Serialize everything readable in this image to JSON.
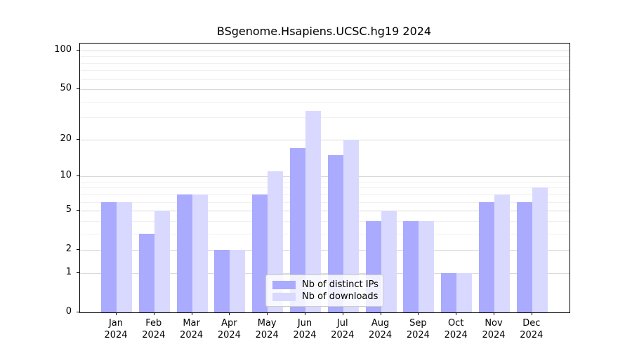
{
  "title": "BSgenome.Hsapiens.UCSC.hg19 2024",
  "chart_data": {
    "type": "bar",
    "title": "BSgenome.Hsapiens.UCSC.hg19 2024",
    "categories": [
      "Jan",
      "Feb",
      "Mar",
      "Apr",
      "May",
      "Jun",
      "Jul",
      "Aug",
      "Sep",
      "Oct",
      "Nov",
      "Dec"
    ],
    "x_year_line": "2024",
    "series": [
      {
        "name": "Nb of distinct IPs",
        "color": "#aaaaff",
        "values": [
          6,
          3,
          7,
          2,
          7,
          17,
          15,
          4,
          4,
          1,
          6,
          6
        ]
      },
      {
        "name": "Nb of downloads",
        "color": "#d9d9ff",
        "values": [
          6,
          5,
          7,
          2,
          11,
          34,
          20,
          5,
          4,
          1,
          7,
          8
        ]
      }
    ],
    "y_axis": {
      "scale": "log1p",
      "ticks_major": [
        0,
        1,
        2,
        5,
        10,
        20,
        50,
        100
      ],
      "ticks_minor": [
        3,
        4,
        6,
        7,
        8,
        9,
        30,
        40,
        60,
        70,
        80,
        90
      ],
      "ylim": [
        0,
        113
      ]
    },
    "xlabel": "",
    "ylabel": "",
    "grid": "horizontal",
    "legend": {
      "position": "lower center",
      "entries": [
        "Nb of distinct IPs",
        "Nb of downloads"
      ]
    }
  }
}
